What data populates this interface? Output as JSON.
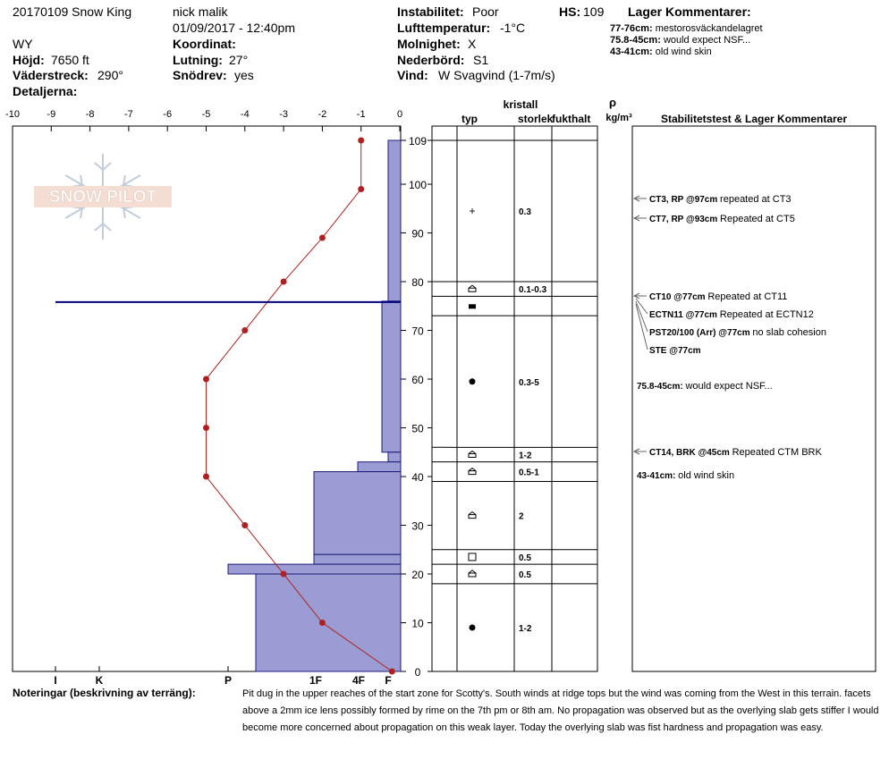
{
  "header": {
    "title": "20170109 Snow King",
    "state": "WY",
    "elevation_label": "Höjd:",
    "elevation": "7650 ft",
    "aspect_label": "Väderstreck:",
    "aspect": "290°",
    "details_label": "Detaljerna:",
    "observer": "nick malik",
    "datetime": "01/09/2017 - 12:40pm",
    "coord_label": "Koordinat:",
    "slope_label": "Lutning:",
    "slope": "27°",
    "drift_label": "Snödrev:",
    "drift": "yes",
    "stability_label": "Instabilitet:",
    "stability": "Poor",
    "airtemp_label": "Lufttemperatur:",
    "airtemp": "-1°C",
    "sky_label": "Molnighet:",
    "sky": "X",
    "precip_label": "Nederbörd:",
    "precip": "S1",
    "wind_label": "Vind:",
    "wind": "W Svagvind (1-7m/s)",
    "hs_label": "HS:",
    "hs": "109",
    "layer_comments_title": "Lager Kommentarer:",
    "layer_comments": [
      {
        "depth": "77-76cm:",
        "text": "mestorosväckandelagret"
      },
      {
        "depth": "75.8-45cm:",
        "text": "would expect NSF..."
      },
      {
        "depth": "43-41cm:",
        "text": "old wind skin"
      }
    ]
  },
  "logo_text": "SNOW PILOT",
  "columns": {
    "type": "typ",
    "crystal": "kristall",
    "size": "storlek",
    "moisture": "fukthalt",
    "rho": "ρ",
    "density": "kg/m³",
    "stability": "Stabilitetstest & Lager Kommentarer"
  },
  "notes_label": "Noteringar (beskrivning av terräng):",
  "notes": "Pit dug in the upper reaches of the start zone for Scotty's.  South winds at ridge tops but the wind was coming from the West in this terrain. facets above a 2mm ice lens possibly formed by rime on the 7th pm or 8th am. No propagation was observed but as the overlying slab gets stiffer I would become more concerned about propagation on this weak layer.  Today the overlying slab was fist hardness and propagation was easy.",
  "colors": {
    "hardness_fill": "#9c9cd4",
    "hardness_stroke": "#1c1c7c",
    "temperature": "#b02020",
    "fracture_line": "#000080"
  },
  "chart_data": {
    "type": "line",
    "xlabel": "",
    "ylabel": "",
    "temperature_axis": {
      "range": [
        -10,
        0
      ],
      "ticks": [
        -10,
        -9,
        -8,
        -7,
        -6,
        -5,
        -4,
        -3,
        -2,
        -1,
        0
      ]
    },
    "height_axis": {
      "range": [
        0,
        109
      ],
      "ticks": [
        0,
        10,
        20,
        30,
        40,
        50,
        60,
        70,
        80,
        90,
        100,
        109
      ]
    },
    "hardness_axis": {
      "labels": [
        "I",
        "K",
        "P",
        "1F",
        "4F",
        "F"
      ]
    },
    "series": [],
    "temperature_profile": [
      {
        "height": 0,
        "temp": -0.2
      },
      {
        "height": 10,
        "temp": -2
      },
      {
        "height": 20,
        "temp": -3
      },
      {
        "height": 30,
        "temp": -4
      },
      {
        "height": 40,
        "temp": -5
      },
      {
        "height": 50,
        "temp": -5
      },
      {
        "height": 60,
        "temp": -5
      },
      {
        "height": 70,
        "temp": -4
      },
      {
        "height": 80,
        "temp": -3
      },
      {
        "height": 89,
        "temp": -2
      },
      {
        "height": 99,
        "temp": -1
      },
      {
        "height": 109,
        "temp": -1
      }
    ],
    "hardness_layers": [
      {
        "bottom": 76,
        "top": 109,
        "hardness": "F"
      },
      {
        "bottom": 45,
        "top": 76,
        "hardness": "F+"
      },
      {
        "bottom": 43,
        "top": 45,
        "hardness": "F"
      },
      {
        "bottom": 41,
        "top": 43,
        "hardness": "4F"
      },
      {
        "bottom": 24,
        "top": 41,
        "hardness": "1F+"
      },
      {
        "bottom": 22,
        "top": 24,
        "hardness": "1F+"
      },
      {
        "bottom": 20,
        "top": 22,
        "hardness": "P+"
      },
      {
        "bottom": 0,
        "top": 20,
        "hardness": "1F-P"
      }
    ],
    "fracture_height": 76,
    "layer_rows": [
      {
        "bottom": 80,
        "top": 109,
        "grain": "+",
        "size": "0.3"
      },
      {
        "bottom": 77,
        "top": 80,
        "grain": "facet",
        "size": "0.1-0.3"
      },
      {
        "bottom": 73,
        "top": 77,
        "grain": "ice",
        "size": ""
      },
      {
        "bottom": 46,
        "top": 73,
        "grain": "round",
        "size": "0.3-5"
      },
      {
        "bottom": 43,
        "top": 46,
        "grain": "facet",
        "size": "1-2"
      },
      {
        "bottom": 39,
        "top": 43,
        "grain": "facet",
        "size": "0.5-1"
      },
      {
        "bottom": 25,
        "top": 39,
        "grain": "facet",
        "size": "2"
      },
      {
        "bottom": 22,
        "top": 25,
        "grain": "square",
        "size": "0.5"
      },
      {
        "bottom": 18,
        "top": 22,
        "grain": "facet",
        "size": "0.5"
      },
      {
        "bottom": 0,
        "top": 18,
        "grain": "round",
        "size": "1-2"
      }
    ],
    "stability_tests": [
      {
        "label": "CT3, RP @97cm",
        "comment": "repeated at CT3",
        "target": 97
      },
      {
        "label": "CT7, RP @93cm",
        "comment": "Repeated at CT5",
        "target": 93
      },
      {
        "label": "CT10 @77cm",
        "comment": "Repeated at CT11",
        "target": 77
      },
      {
        "label": "ECTN11 @77cm",
        "comment": "Repeated at ECTN12",
        "target": 77
      },
      {
        "label": "PST20/100 (Arr) @77cm",
        "comment": "no slab cohesion",
        "target": 77
      },
      {
        "label": "STE @77cm",
        "comment": "",
        "target": 77
      },
      {
        "label": "75.8-45cm:",
        "comment": "would expect NSF...",
        "target": null
      },
      {
        "label": "CT14, BRK @45cm",
        "comment": "Repeated CTM BRK",
        "target": 45
      },
      {
        "label": "43-41cm:",
        "comment": "old wind skin",
        "target": null
      }
    ]
  }
}
